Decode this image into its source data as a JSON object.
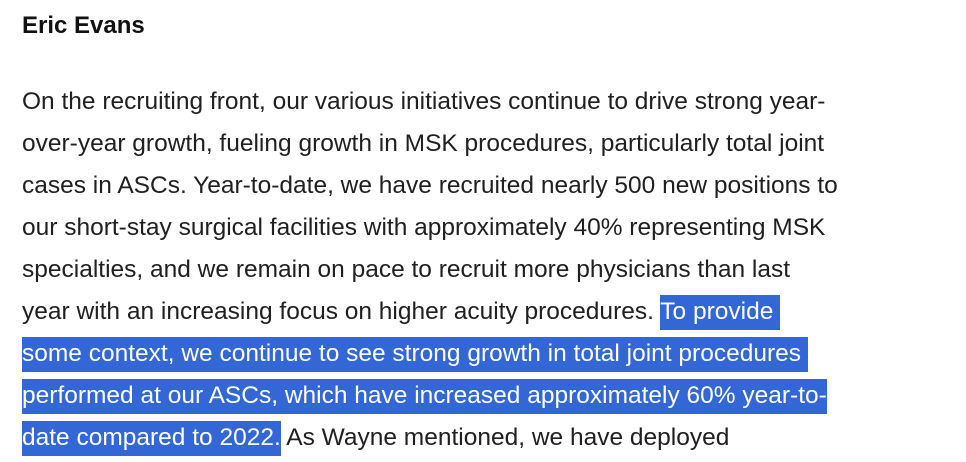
{
  "speaker": "Eric Evans",
  "paragraph": {
    "lines": [
      {
        "plain": "On the recruiting front, our various initiatives continue to drive strong year-"
      },
      {
        "plain": "over-year growth, fueling growth in MSK procedures, particularly total joint"
      },
      {
        "plain": "cases in ASCs. Year-to-date, we have recruited nearly 500 new positions to"
      },
      {
        "plain": "our short-stay surgical facilities with approximately 40% representing MSK"
      },
      {
        "plain": "specialties, and we remain on pace to recruit more physicians than last"
      },
      {
        "plain": "year with an increasing focus on higher acuity procedures. ",
        "highlight": "To provide "
      },
      {
        "highlight": "some context, we continue to see strong growth in total joint procedures "
      },
      {
        "highlight": "performed at our ASCs, which have increased approximately 60% year-to-"
      },
      {
        "highlight": "date compared to 2022.",
        "plain_after": " As Wayne mentioned, we have deployed"
      }
    ]
  },
  "colors": {
    "selection_background": "#3367d6",
    "selection_text": "#ffffff",
    "body_text": "#202020"
  }
}
